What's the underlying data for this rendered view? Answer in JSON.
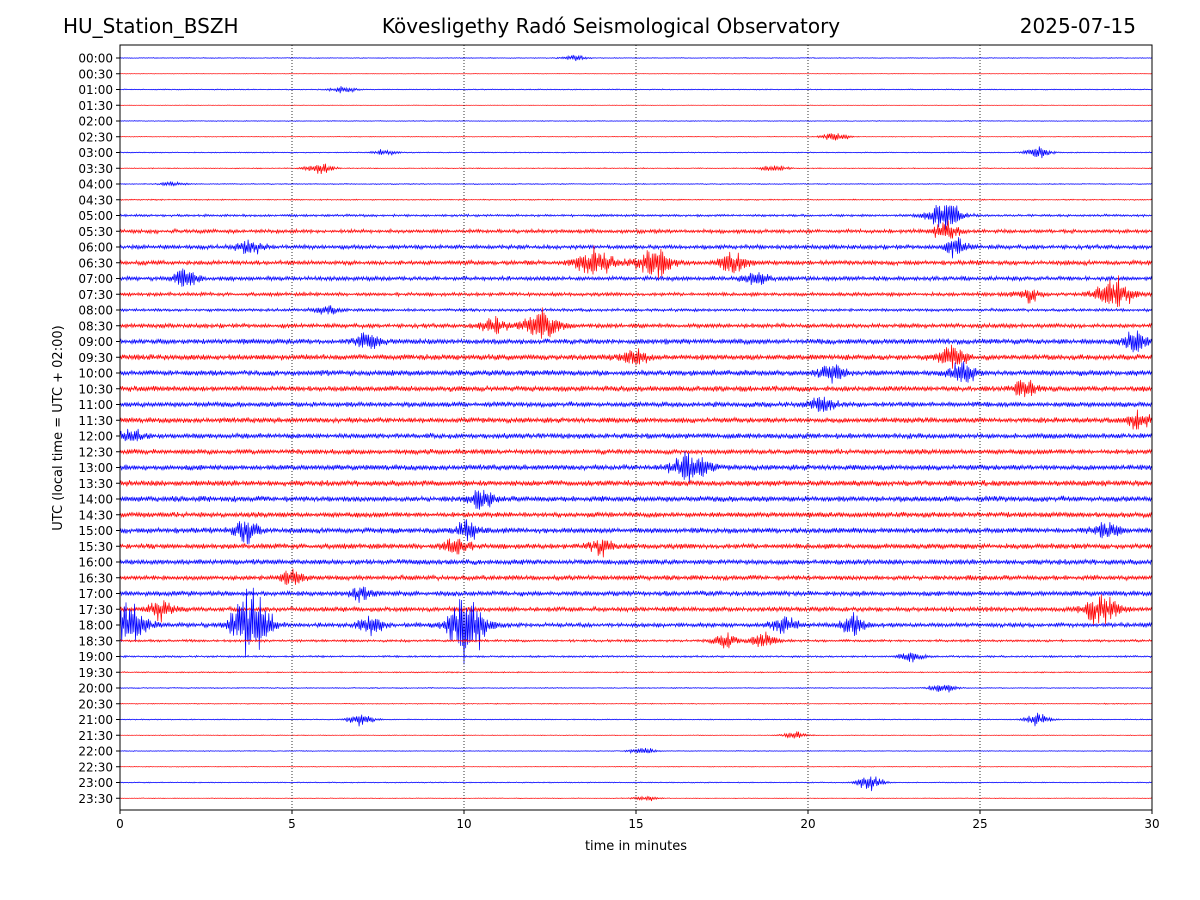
{
  "header": {
    "station": "HU_Station_BSZH",
    "observatory": "Kövesligethy Radó Seismological Observatory",
    "date": "2025-07-15"
  },
  "chart_data": {
    "type": "line",
    "title": "Kövesligethy Radó Seismological Observatory",
    "xlabel": "time in minutes",
    "ylabel": "UTC (local time = UTC + 02:00)",
    "xlim": [
      0,
      30
    ],
    "xticks": [
      0,
      5,
      10,
      15,
      20,
      25,
      30
    ],
    "x_gridlines": [
      5,
      10,
      15,
      20,
      25
    ],
    "grid": "vertical dotted",
    "trace_colors": [
      "#0000ff",
      "#ff0000"
    ],
    "row_labels": [
      "00:00",
      "00:30",
      "01:00",
      "01:30",
      "02:00",
      "02:30",
      "03:00",
      "03:30",
      "04:00",
      "04:30",
      "05:00",
      "05:30",
      "06:00",
      "06:30",
      "07:00",
      "07:30",
      "08:00",
      "08:30",
      "09:00",
      "09:30",
      "10:00",
      "10:30",
      "11:00",
      "11:30",
      "12:00",
      "12:30",
      "13:00",
      "13:30",
      "14:00",
      "14:30",
      "15:00",
      "15:30",
      "16:00",
      "16:30",
      "17:00",
      "17:30",
      "18:00",
      "18:30",
      "19:00",
      "19:30",
      "20:00",
      "20:30",
      "21:00",
      "21:30",
      "22:00",
      "22:30",
      "23:00",
      "23:30"
    ],
    "noise_level": [
      0.3,
      0.2,
      0.4,
      0.2,
      0.3,
      0.3,
      0.4,
      0.4,
      0.4,
      0.5,
      1.0,
      1.6,
      1.8,
      1.9,
      1.8,
      1.5,
      1.2,
      1.8,
      2.2,
      2.4,
      2.4,
      2.3,
      2.2,
      2.2,
      2.2,
      2.1,
      2.3,
      2.4,
      2.4,
      2.2,
      2.3,
      2.2,
      2.2,
      2.0,
      2.1,
      2.0,
      1.8,
      1.0,
      0.8,
      0.5,
      0.4,
      0.4,
      0.4,
      0.3,
      0.3,
      0.3,
      0.4,
      0.3
    ],
    "events": [
      {
        "row": "00:00",
        "minute": 13.2,
        "amplitude": 2.5
      },
      {
        "row": "01:00",
        "minute": 6.5,
        "amplitude": 3
      },
      {
        "row": "02:30",
        "minute": 20.8,
        "amplitude": 4
      },
      {
        "row": "03:00",
        "minute": 7.7,
        "amplitude": 2.5
      },
      {
        "row": "03:00",
        "minute": 26.7,
        "amplitude": 5
      },
      {
        "row": "03:30",
        "minute": 5.8,
        "amplitude": 5
      },
      {
        "row": "03:30",
        "minute": 19.0,
        "amplitude": 3
      },
      {
        "row": "04:00",
        "minute": 1.5,
        "amplitude": 2
      },
      {
        "row": "05:00",
        "minute": 24.0,
        "amplitude": 12
      },
      {
        "row": "05:30",
        "minute": 24.0,
        "amplitude": 8
      },
      {
        "row": "06:00",
        "minute": 3.8,
        "amplitude": 7
      },
      {
        "row": "06:00",
        "minute": 24.3,
        "amplitude": 7
      },
      {
        "row": "06:30",
        "minute": 13.8,
        "amplitude": 14
      },
      {
        "row": "06:30",
        "minute": 15.5,
        "amplitude": 14
      },
      {
        "row": "06:30",
        "minute": 17.8,
        "amplitude": 10
      },
      {
        "row": "07:00",
        "minute": 1.9,
        "amplitude": 8
      },
      {
        "row": "07:00",
        "minute": 18.5,
        "amplitude": 6
      },
      {
        "row": "07:30",
        "minute": 28.9,
        "amplitude": 14
      },
      {
        "row": "07:30",
        "minute": 26.4,
        "amplitude": 6
      },
      {
        "row": "08:00",
        "minute": 6.0,
        "amplitude": 4
      },
      {
        "row": "08:30",
        "minute": 12.3,
        "amplitude": 13
      },
      {
        "row": "08:30",
        "minute": 10.9,
        "amplitude": 8
      },
      {
        "row": "09:00",
        "minute": 7.2,
        "amplitude": 6
      },
      {
        "row": "09:00",
        "minute": 29.5,
        "amplitude": 8
      },
      {
        "row": "09:30",
        "minute": 24.2,
        "amplitude": 10
      },
      {
        "row": "09:30",
        "minute": 15.0,
        "amplitude": 6
      },
      {
        "row": "10:00",
        "minute": 24.5,
        "amplitude": 9
      },
      {
        "row": "10:00",
        "minute": 20.7,
        "amplitude": 7
      },
      {
        "row": "10:30",
        "minute": 26.3,
        "amplitude": 6
      },
      {
        "row": "11:00",
        "minute": 20.4,
        "amplitude": 6
      },
      {
        "row": "11:30",
        "minute": 29.6,
        "amplitude": 7
      },
      {
        "row": "12:00",
        "minute": 0.3,
        "amplitude": 6
      },
      {
        "row": "13:00",
        "minute": 16.6,
        "amplitude": 12
      },
      {
        "row": "14:00",
        "minute": 10.5,
        "amplitude": 7
      },
      {
        "row": "15:00",
        "minute": 3.7,
        "amplitude": 9
      },
      {
        "row": "15:00",
        "minute": 10.1,
        "amplitude": 7
      },
      {
        "row": "15:00",
        "minute": 28.7,
        "amplitude": 8
      },
      {
        "row": "15:30",
        "minute": 9.8,
        "amplitude": 7
      },
      {
        "row": "15:30",
        "minute": 14.0,
        "amplitude": 7
      },
      {
        "row": "16:30",
        "minute": 5.0,
        "amplitude": 6
      },
      {
        "row": "17:00",
        "minute": 7.0,
        "amplitude": 5
      },
      {
        "row": "17:30",
        "minute": 28.5,
        "amplitude": 12
      },
      {
        "row": "17:30",
        "minute": 1.2,
        "amplitude": 8
      },
      {
        "row": "18:00",
        "minute": 3.8,
        "amplitude": 30
      },
      {
        "row": "18:00",
        "minute": 10.1,
        "amplitude": 30
      },
      {
        "row": "18:00",
        "minute": 0.3,
        "amplitude": 16
      },
      {
        "row": "18:00",
        "minute": 7.3,
        "amplitude": 8
      },
      {
        "row": "18:00",
        "minute": 19.3,
        "amplitude": 7
      },
      {
        "row": "18:00",
        "minute": 21.3,
        "amplitude": 8
      },
      {
        "row": "18:30",
        "minute": 18.7,
        "amplitude": 7
      },
      {
        "row": "18:30",
        "minute": 17.6,
        "amplitude": 6
      },
      {
        "row": "19:00",
        "minute": 23.0,
        "amplitude": 4
      },
      {
        "row": "20:00",
        "minute": 23.9,
        "amplitude": 4
      },
      {
        "row": "21:00",
        "minute": 7.0,
        "amplitude": 5
      },
      {
        "row": "21:00",
        "minute": 26.7,
        "amplitude": 5
      },
      {
        "row": "21:30",
        "minute": 19.6,
        "amplitude": 3
      },
      {
        "row": "22:00",
        "minute": 15.2,
        "amplitude": 3
      },
      {
        "row": "23:00",
        "minute": 21.8,
        "amplitude": 7
      },
      {
        "row": "23:30",
        "minute": 15.3,
        "amplitude": 2
      }
    ]
  }
}
